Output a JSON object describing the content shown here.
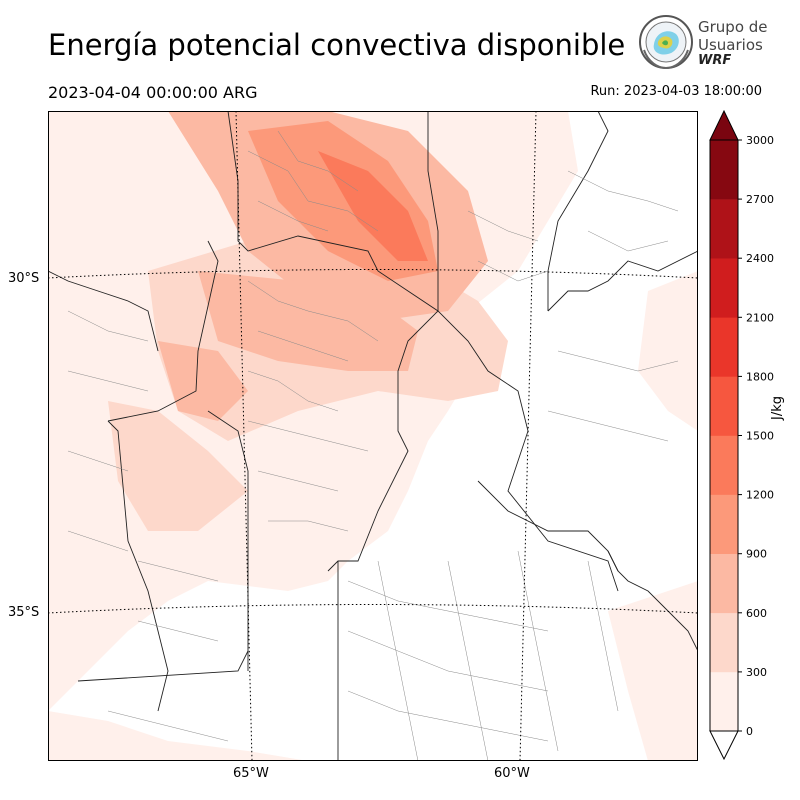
{
  "header": {
    "title": "Energía potencial convectiva disponible",
    "valid_time": "2023-04-04 00:00:00 ARG",
    "run_time": "Run: 2023-04-03 18:00:00"
  },
  "logo": {
    "line1": "Grupo de",
    "line2": "Usuarios",
    "line3": "WRF"
  },
  "map": {
    "lat_labels": [
      "30°S",
      "35°S"
    ],
    "lon_labels": [
      "65°W",
      "60°W"
    ]
  },
  "colorbar": {
    "unit": "J/kg",
    "ticks": [
      "0",
      "300",
      "600",
      "900",
      "1200",
      "1500",
      "1800",
      "2100",
      "2400",
      "2700",
      "3000"
    ],
    "colors": [
      "#fff0eb",
      "#fdd8cb",
      "#fcb9a3",
      "#fc997a",
      "#fb7a5b",
      "#f6573f",
      "#ea362a",
      "#d01d1e",
      "#af1218",
      "#860811"
    ]
  }
}
